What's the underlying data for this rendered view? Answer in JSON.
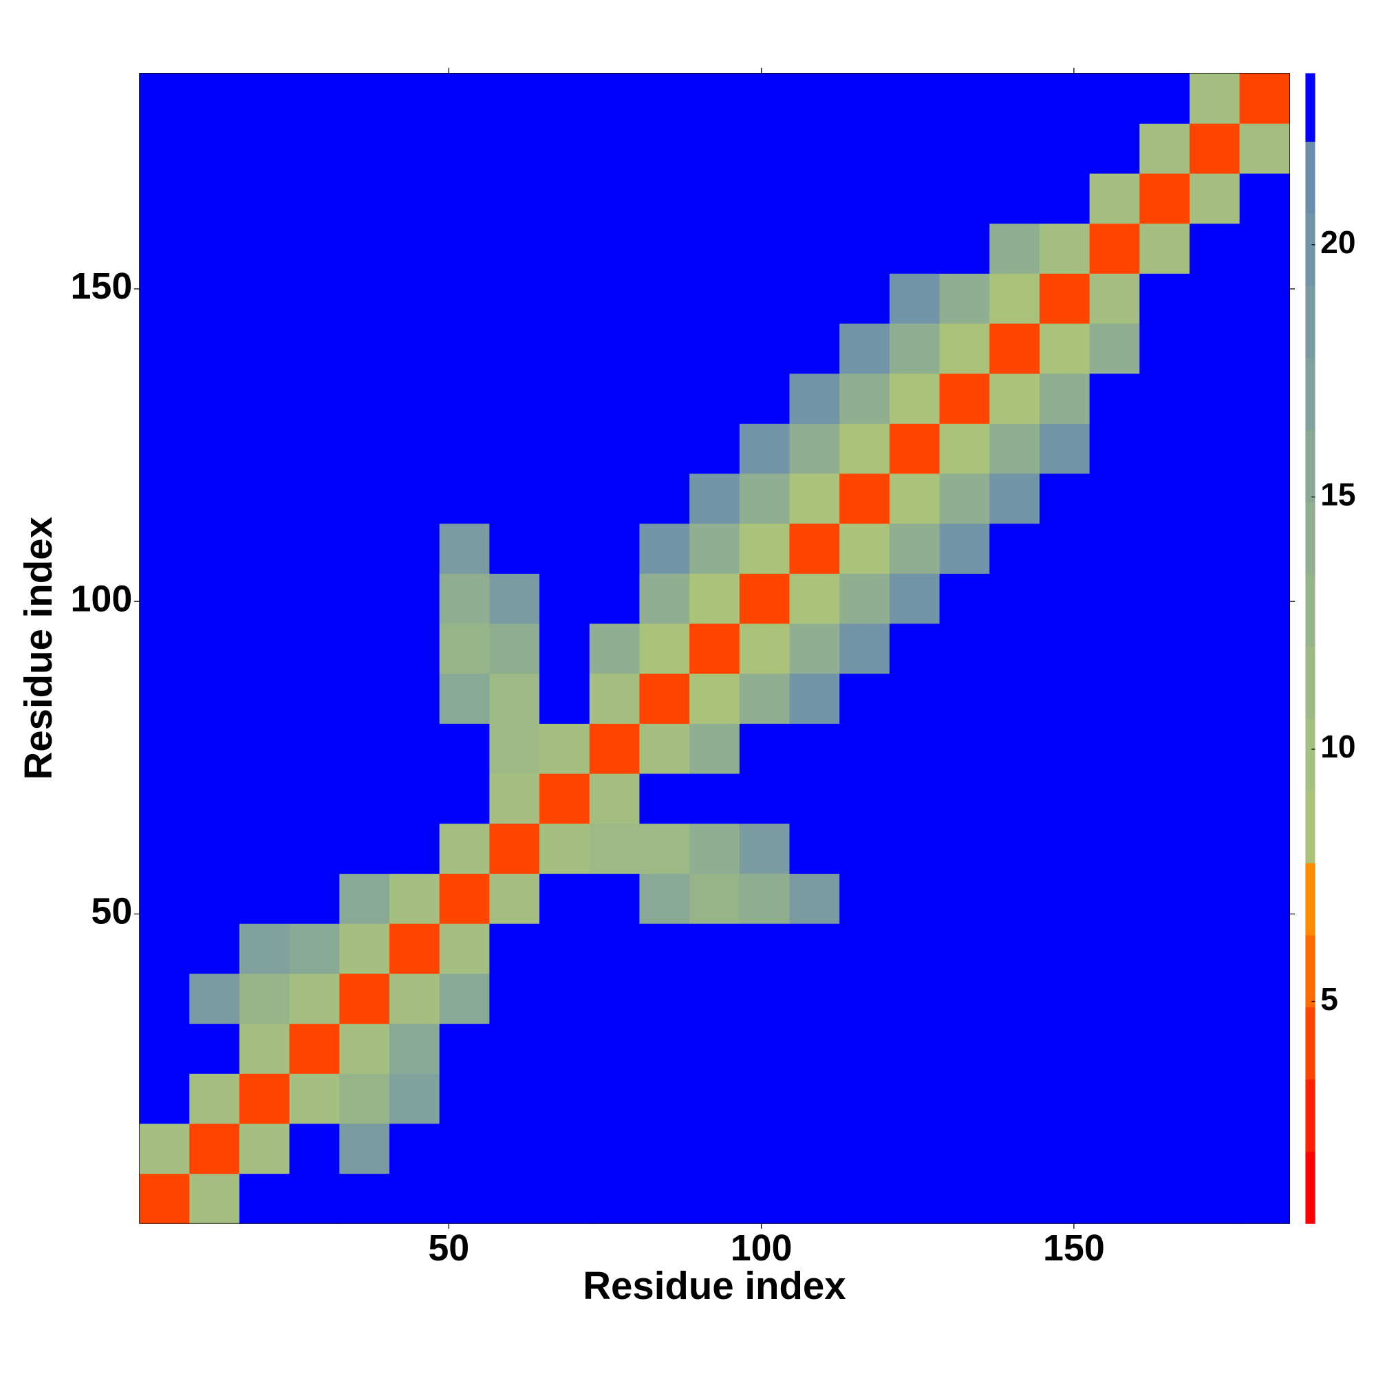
{
  "chart_data": {
    "type": "heatmap",
    "xlabel": "Residue index",
    "ylabel": "Residue index",
    "x": [
      4.5,
      12.5,
      20.5,
      28.5,
      36.5,
      44.5,
      52.5,
      60.5,
      68.5,
      76.5,
      84.5,
      92.5,
      100.5,
      108.5,
      116.5,
      124.5,
      132.5,
      140.5,
      148.5,
      156.5,
      164.5,
      172.5,
      180.5
    ],
    "y": [
      4.5,
      12.5,
      20.5,
      28.5,
      36.5,
      44.5,
      52.5,
      60.5,
      68.5,
      76.5,
      84.5,
      92.5,
      100.5,
      108.5,
      116.5,
      124.5,
      132.5,
      140.5,
      148.5,
      156.5,
      164.5,
      172.5,
      180.5
    ],
    "xlim": [
      0.5,
      184.5
    ],
    "ylim": [
      0.5,
      184.5
    ],
    "xticks": [
      50,
      100,
      150
    ],
    "yticks": [
      50,
      100,
      150
    ],
    "z": [
      [
        3.5,
        10,
        23,
        23,
        23,
        23,
        23,
        23,
        23,
        23,
        23,
        23,
        23,
        23,
        23,
        23,
        23,
        23,
        23,
        23,
        23,
        23,
        23
      ],
      [
        10,
        3.5,
        10,
        23,
        18,
        23,
        23,
        23,
        23,
        23,
        23,
        23,
        23,
        23,
        23,
        23,
        23,
        23,
        23,
        23,
        23,
        23,
        23
      ],
      [
        23,
        10,
        3.5,
        10,
        13,
        17,
        23,
        23,
        23,
        23,
        23,
        23,
        23,
        23,
        23,
        23,
        23,
        23,
        23,
        23,
        23,
        23,
        23
      ],
      [
        23,
        23,
        10,
        3.5,
        10,
        15,
        23,
        23,
        23,
        23,
        23,
        23,
        23,
        23,
        23,
        23,
        23,
        23,
        23,
        23,
        23,
        23,
        23
      ],
      [
        23,
        18,
        13,
        10,
        3.5,
        10,
        15,
        23,
        23,
        23,
        23,
        23,
        23,
        23,
        23,
        23,
        23,
        23,
        23,
        23,
        23,
        23,
        23
      ],
      [
        23,
        23,
        17,
        15,
        10,
        3.5,
        10,
        23,
        23,
        23,
        23,
        23,
        23,
        23,
        23,
        23,
        23,
        23,
        23,
        23,
        23,
        23,
        23
      ],
      [
        23,
        23,
        23,
        23,
        15,
        10,
        3.5,
        10,
        23,
        23,
        16,
        13,
        14,
        18,
        23,
        23,
        23,
        23,
        23,
        23,
        23,
        23,
        23
      ],
      [
        23,
        23,
        23,
        23,
        23,
        23,
        10,
        3.5,
        10,
        12,
        12,
        14,
        18,
        23,
        23,
        23,
        23,
        23,
        23,
        23,
        23,
        23,
        23
      ],
      [
        23,
        23,
        23,
        23,
        23,
        23,
        23,
        10,
        3.5,
        10,
        23,
        23,
        23,
        23,
        23,
        23,
        23,
        23,
        23,
        23,
        23,
        23,
        23
      ],
      [
        23,
        23,
        23,
        23,
        23,
        23,
        23,
        12,
        10,
        3.5,
        10,
        14,
        23,
        23,
        23,
        23,
        23,
        23,
        23,
        23,
        23,
        23,
        23
      ],
      [
        23,
        23,
        23,
        23,
        23,
        23,
        16,
        12,
        23,
        10,
        3.5,
        8,
        14,
        20,
        23,
        23,
        23,
        23,
        23,
        23,
        23,
        23,
        23
      ],
      [
        23,
        23,
        23,
        23,
        23,
        23,
        13,
        14,
        23,
        14,
        8,
        3.5,
        8,
        14,
        20,
        23,
        23,
        23,
        23,
        23,
        23,
        23,
        23
      ],
      [
        23,
        23,
        23,
        23,
        23,
        23,
        14,
        18,
        23,
        23,
        14,
        8,
        3.5,
        8,
        14,
        20,
        23,
        23,
        23,
        23,
        23,
        23,
        23
      ],
      [
        23,
        23,
        23,
        23,
        23,
        23,
        18,
        23,
        23,
        23,
        20,
        14,
        8,
        3.5,
        8,
        14,
        20,
        23,
        23,
        23,
        23,
        23,
        23
      ],
      [
        23,
        23,
        23,
        23,
        23,
        23,
        23,
        23,
        23,
        23,
        23,
        20,
        14,
        8,
        3.5,
        8,
        14,
        20,
        23,
        23,
        23,
        23,
        23
      ],
      [
        23,
        23,
        23,
        23,
        23,
        23,
        23,
        23,
        23,
        23,
        23,
        23,
        20,
        14,
        8,
        3.5,
        8,
        14,
        20,
        23,
        23,
        23,
        23
      ],
      [
        23,
        23,
        23,
        23,
        23,
        23,
        23,
        23,
        23,
        23,
        23,
        23,
        23,
        20,
        14,
        8,
        3.5,
        8,
        14,
        23,
        23,
        23,
        23
      ],
      [
        23,
        23,
        23,
        23,
        23,
        23,
        23,
        23,
        23,
        23,
        23,
        23,
        23,
        23,
        20,
        14,
        8,
        3.5,
        8,
        14,
        23,
        23,
        23
      ],
      [
        23,
        23,
        23,
        23,
        23,
        23,
        23,
        23,
        23,
        23,
        23,
        23,
        23,
        23,
        23,
        20,
        14,
        8,
        3.5,
        10,
        23,
        23,
        23
      ],
      [
        23,
        23,
        23,
        23,
        23,
        23,
        23,
        23,
        23,
        23,
        23,
        23,
        23,
        23,
        23,
        23,
        23,
        14,
        10,
        3.5,
        10,
        23,
        23
      ],
      [
        23,
        23,
        23,
        23,
        23,
        23,
        23,
        23,
        23,
        23,
        23,
        23,
        23,
        23,
        23,
        23,
        23,
        23,
        23,
        10,
        3.5,
        10,
        23
      ],
      [
        23,
        23,
        23,
        23,
        23,
        23,
        23,
        23,
        23,
        23,
        23,
        23,
        23,
        23,
        23,
        23,
        23,
        23,
        23,
        23,
        10,
        3.5,
        10
      ],
      [
        23,
        23,
        23,
        23,
        23,
        23,
        23,
        23,
        23,
        23,
        23,
        23,
        23,
        23,
        23,
        23,
        23,
        23,
        23,
        23,
        23,
        10,
        3.5
      ]
    ],
    "colorbar": {
      "levels": [
        0.6,
        2.03,
        3.46,
        4.89,
        6.32,
        7.75,
        9.18,
        10.61,
        12.04,
        13.47,
        14.9,
        16.33,
        17.76,
        19.19,
        20.62,
        22.05,
        23.4
      ],
      "colors": [
        "#ff0000",
        "#ff2200",
        "#ff4400",
        "#ff6a00",
        "#ff8c00",
        "#aac27a",
        "#a4bf80",
        "#9db985",
        "#96b48a",
        "#8faf90",
        "#88a996",
        "#81a29c",
        "#7a9ba2",
        "#7395a8",
        "#6c8ead",
        "#0000ff"
      ],
      "ticks": [
        5,
        10,
        15,
        20
      ]
    }
  }
}
